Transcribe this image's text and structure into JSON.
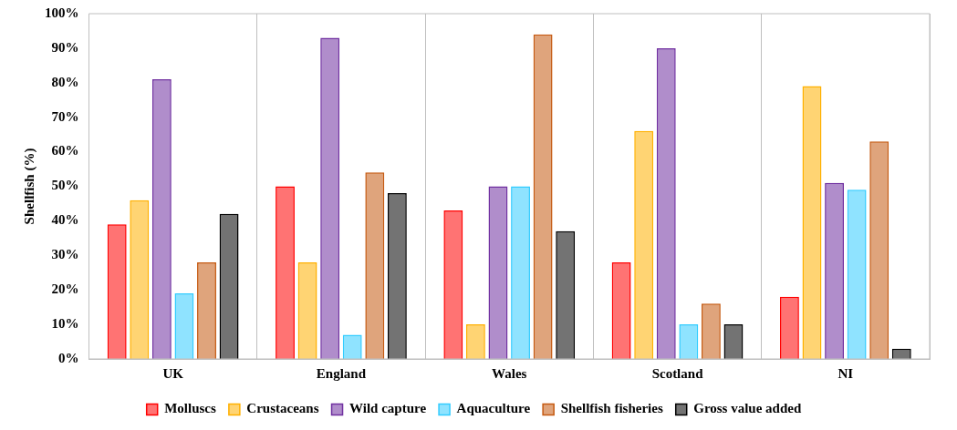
{
  "chart_data": {
    "type": "bar",
    "ylabel": "Shellfish (%)",
    "categories": [
      "UK",
      "England",
      "Wales",
      "Scotland",
      "NI"
    ],
    "series": [
      {
        "name": "Molluscs",
        "color": "#ff0000",
        "values": [
          39,
          50,
          43,
          28,
          18
        ]
      },
      {
        "name": "Crustaceans",
        "color": "#ffb000",
        "values": [
          46,
          28,
          10,
          66,
          79
        ]
      },
      {
        "name": "Wild capture",
        "color": "#7030a0",
        "values": [
          81,
          93,
          50,
          90,
          51
        ]
      },
      {
        "name": "Aquaculture",
        "color": "#33ccff",
        "values": [
          19,
          7,
          50,
          10,
          49
        ]
      },
      {
        "name": "Shellfish fisheries",
        "color": "#c55a11",
        "values": [
          28,
          54,
          94,
          16,
          63
        ]
      },
      {
        "name": "Gross value added",
        "color": "#000000",
        "values": [
          42,
          48,
          37,
          10,
          3
        ]
      }
    ],
    "ylim": [
      0,
      100
    ],
    "yticks": [
      {
        "value": 0,
        "label": "0%"
      },
      {
        "value": 10,
        "label": "10%"
      },
      {
        "value": 20,
        "label": "20%"
      },
      {
        "value": 30,
        "label": "30%"
      },
      {
        "value": 40,
        "label": "40%"
      },
      {
        "value": 50,
        "label": "50%"
      },
      {
        "value": 60,
        "label": "60%"
      },
      {
        "value": 70,
        "label": "70%"
      },
      {
        "value": 80,
        "label": "80%"
      },
      {
        "value": 90,
        "label": "90%"
      },
      {
        "value": 100,
        "label": "100%"
      }
    ],
    "grid": "x",
    "legend": "bottom"
  }
}
